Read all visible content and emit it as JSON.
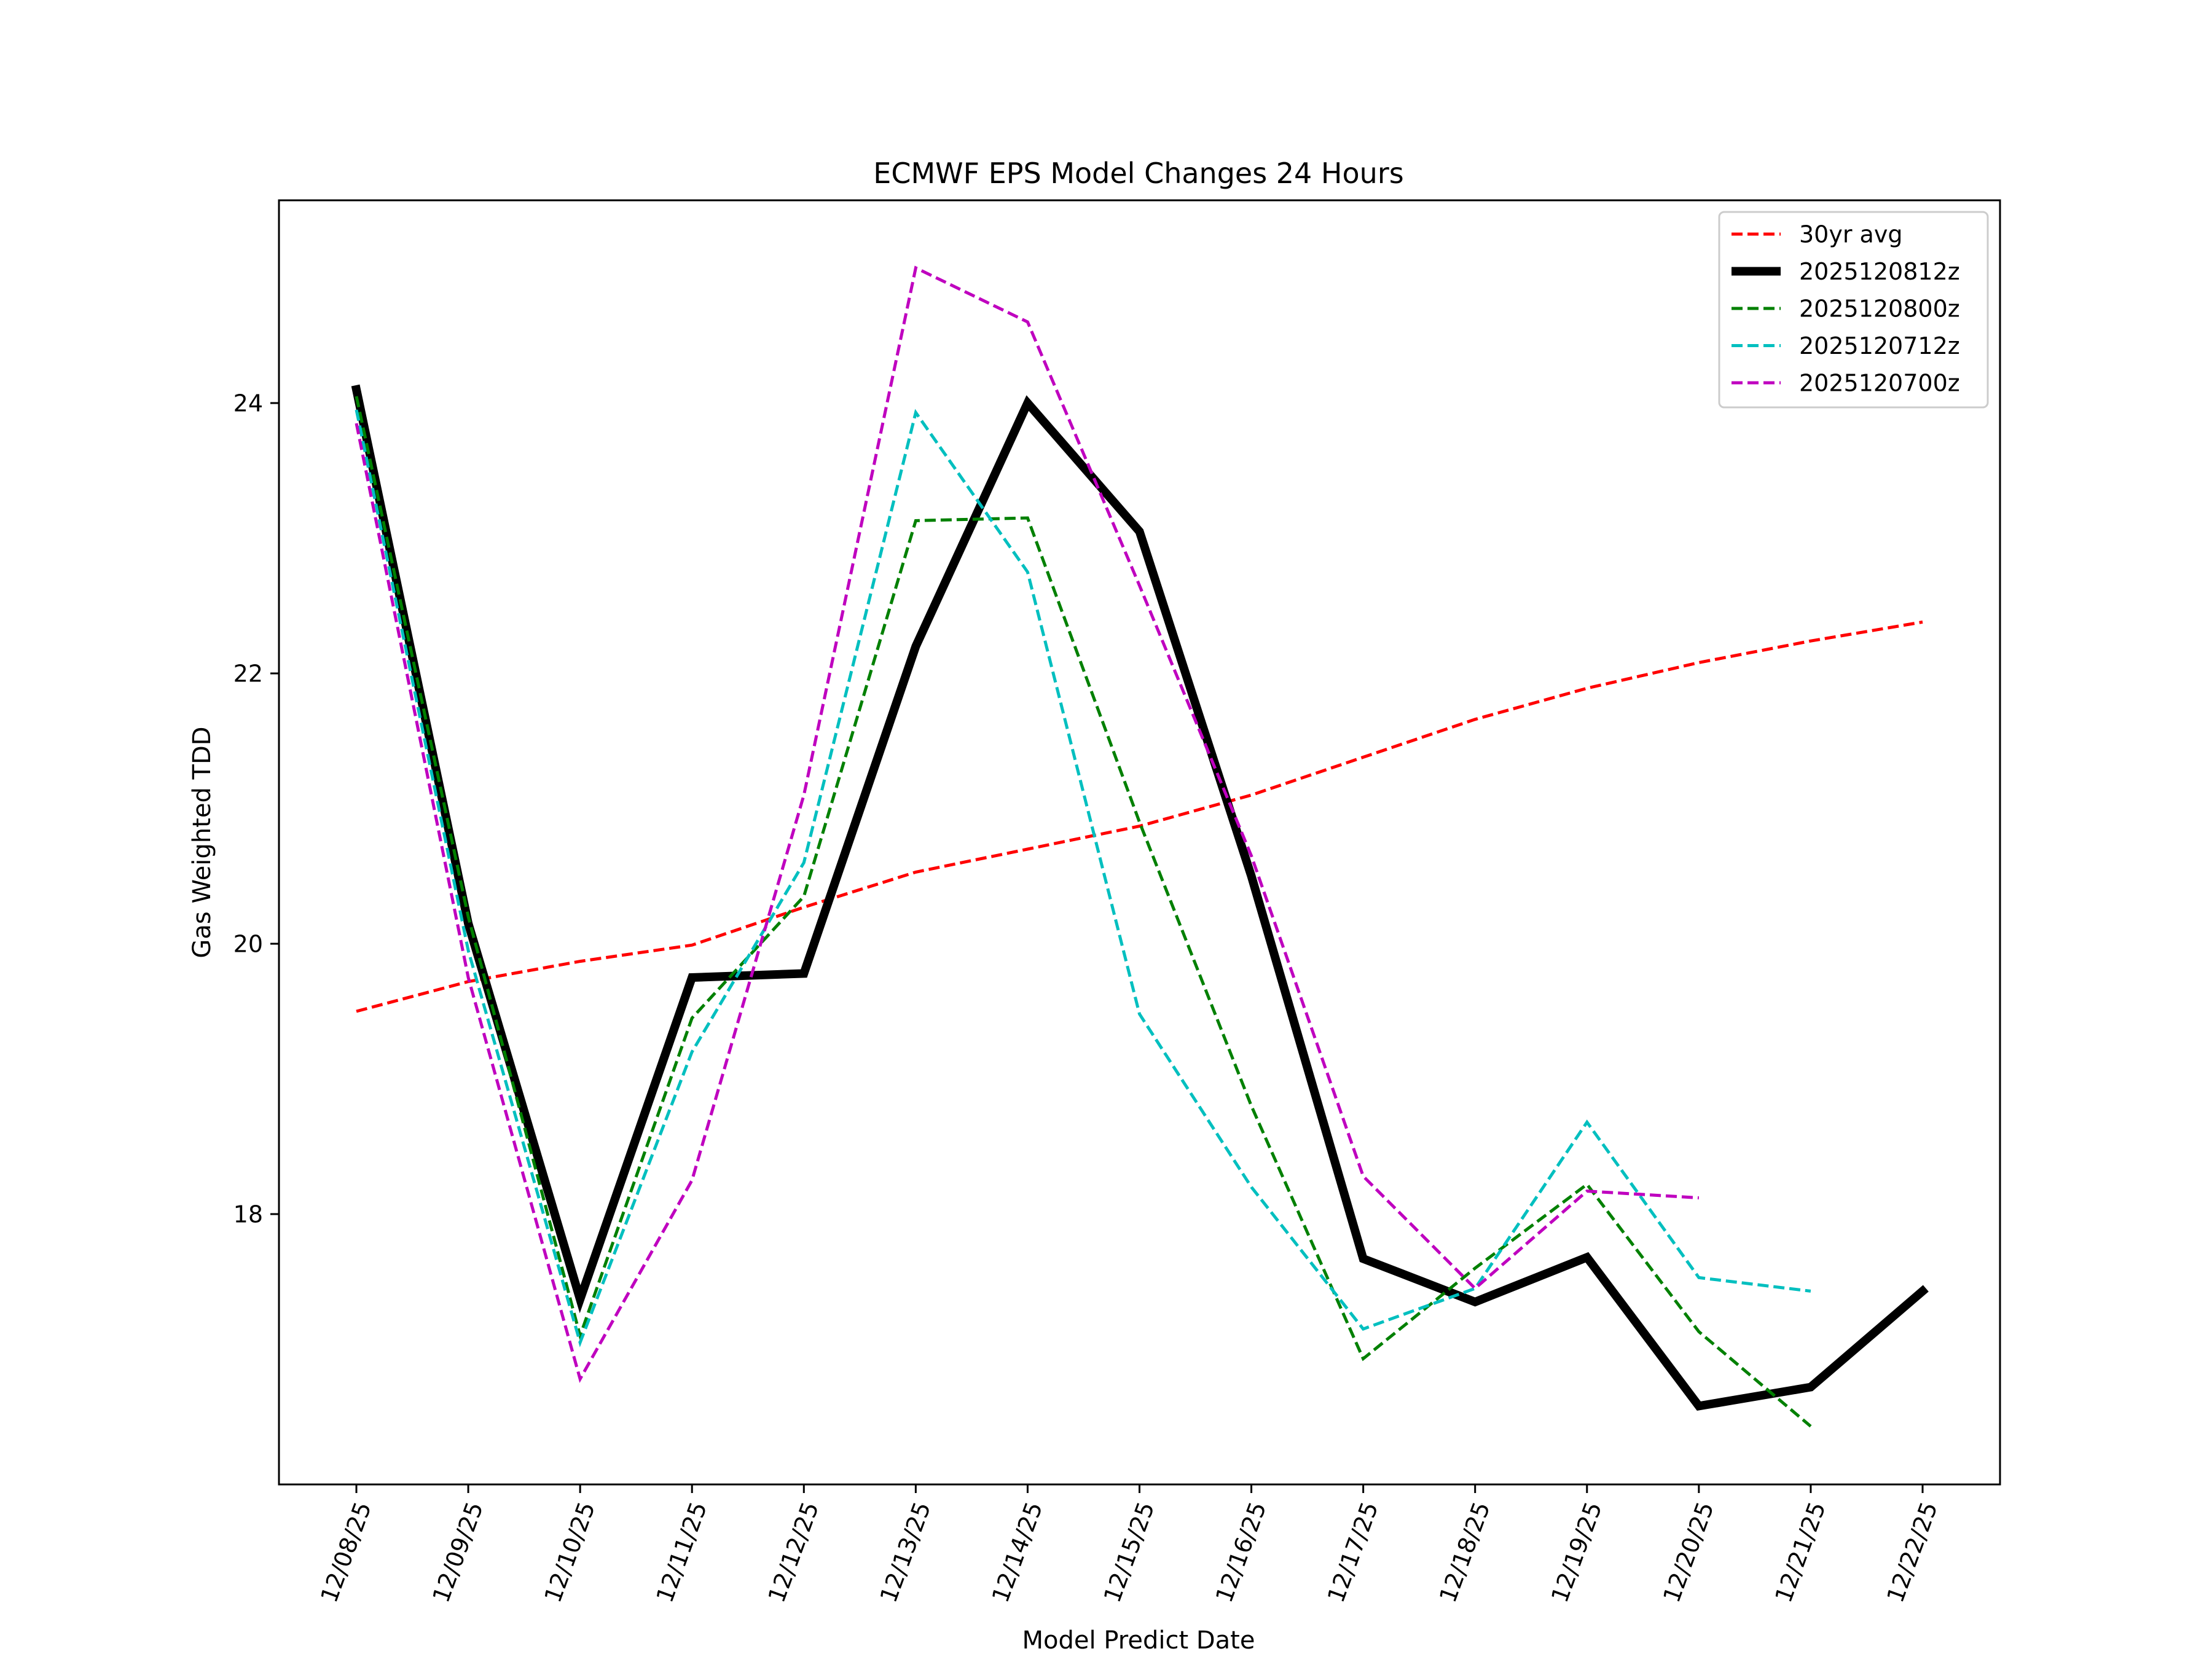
{
  "chart_data": {
    "type": "line",
    "title": "ECMWF EPS Model Changes 24 Hours",
    "xlabel": "Model Predict Date",
    "ylabel": "Gas Weighted TDD",
    "categories": [
      "12/08/25",
      "12/09/25",
      "12/10/25",
      "12/11/25",
      "12/12/25",
      "12/13/25",
      "12/14/25",
      "12/15/25",
      "12/16/25",
      "12/17/25",
      "12/18/25",
      "12/19/25",
      "12/20/25",
      "12/21/25",
      "12/22/25"
    ],
    "ylim": [
      16.0,
      25.5
    ],
    "yticks": [
      18,
      20,
      22,
      24
    ],
    "grid": false,
    "legend_position": "top-right",
    "series": [
      {
        "name": "30yr avg",
        "color": "#ff0000",
        "style": "dashed",
        "width": 5,
        "values": [
          19.5,
          19.72,
          19.87,
          19.99,
          20.27,
          20.53,
          20.7,
          20.87,
          21.1,
          21.38,
          21.66,
          21.89,
          22.08,
          22.24,
          22.38
        ]
      },
      {
        "name": "2025120812z",
        "color": "#000000",
        "style": "solid",
        "width": 14,
        "values": [
          24.1,
          20.15,
          17.37,
          19.75,
          19.78,
          22.2,
          24.0,
          23.05,
          20.5,
          17.67,
          17.35,
          17.68,
          16.58,
          16.72,
          17.43
        ]
      },
      {
        "name": "2025120800z",
        "color": "#008000",
        "style": "dashed",
        "width": 5,
        "values": [
          24.05,
          20.2,
          17.1,
          19.45,
          20.35,
          23.13,
          23.15,
          20.9,
          18.8,
          16.93,
          17.6,
          18.22,
          17.13,
          16.43,
          null
        ]
      },
      {
        "name": "2025120712z",
        "color": "#00bfbf",
        "style": "dashed",
        "width": 5,
        "values": [
          23.95,
          19.95,
          17.05,
          19.2,
          20.6,
          23.93,
          22.75,
          19.48,
          18.2,
          17.15,
          17.45,
          18.68,
          17.53,
          17.43,
          null
        ]
      },
      {
        "name": "2025120700z",
        "color": "#bf00bf",
        "style": "dashed",
        "width": 5,
        "values": [
          23.85,
          19.75,
          16.78,
          18.25,
          21.1,
          25.0,
          24.6,
          22.65,
          20.65,
          18.28,
          17.45,
          18.17,
          18.12,
          null,
          null
        ]
      }
    ]
  }
}
